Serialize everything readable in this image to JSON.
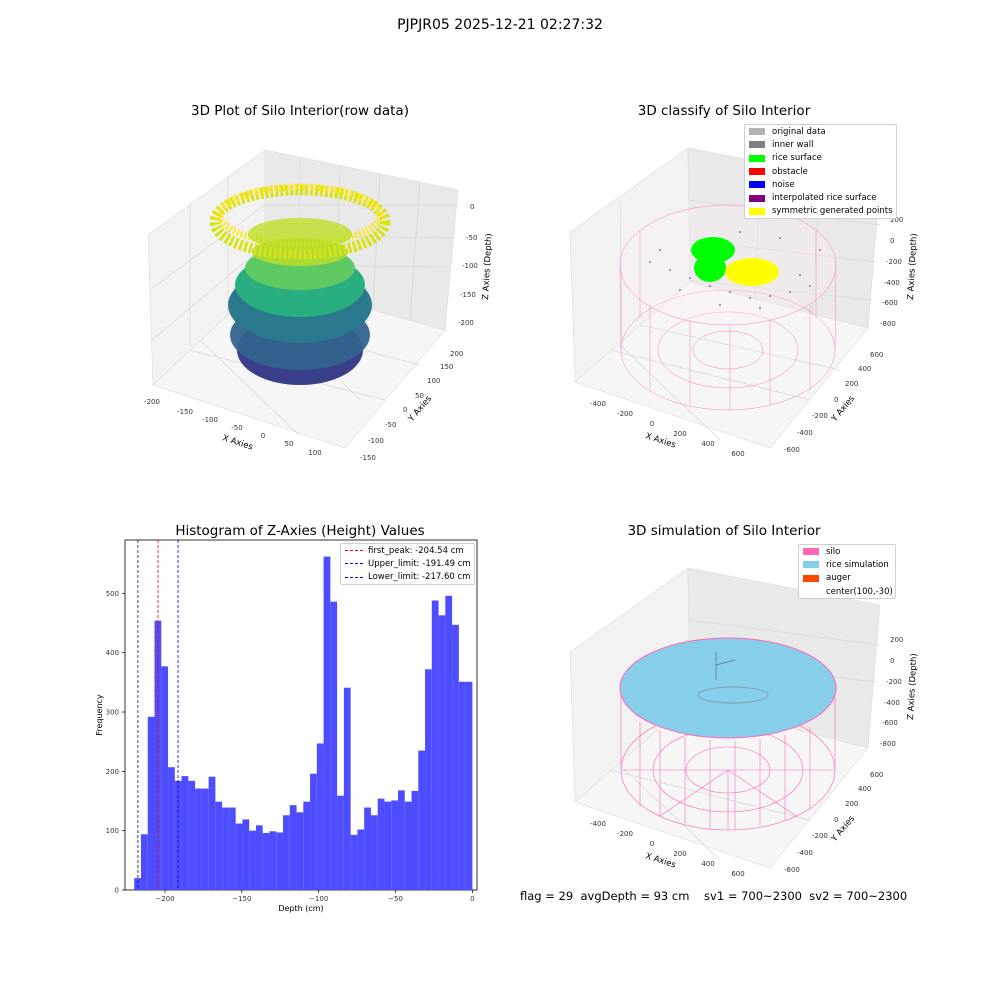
{
  "suptitle": "PJPJR05 2025-12-21 02:27:32",
  "footer": "flag = 29  avgDepth = 93 cm    sv1 = 700~2300  sv2 = 700~2300",
  "chart_data": [
    {
      "type": "scatter",
      "title": "3D Plot of Silo Interior(row data)",
      "xlabel": "X Axies",
      "ylabel": "Y Axies",
      "zlabel": "Z Axies (Depth)",
      "x_ticks": [
        "-200",
        "-150",
        "-100",
        "-50",
        "0",
        "50",
        "100"
      ],
      "y_ticks": [
        "-150",
        "-100",
        "-50",
        "0",
        "50",
        "100",
        "150",
        "200"
      ],
      "z_ticks": [
        "0",
        "-50",
        "-100",
        "-150",
        "-200"
      ],
      "zlim": [
        -220,
        0
      ],
      "colormap": "viridis"
    },
    {
      "type": "scatter",
      "title": "3D classify of Silo Interior",
      "xlabel": "X Axies",
      "ylabel": "Y Axies",
      "zlabel": "Z Axies (Depth)",
      "x_ticks": [
        "-400",
        "-200",
        "0",
        "200",
        "400",
        "600"
      ],
      "y_ticks": [
        "-600",
        "-400",
        "-200",
        "0",
        "200",
        "400",
        "600"
      ],
      "z_ticks": [
        "200",
        "0",
        "-200",
        "-400",
        "-600",
        "-800"
      ],
      "legend": [
        {
          "label": "original data",
          "color": "#b3b3b3"
        },
        {
          "label": "inner wall",
          "color": "#808080"
        },
        {
          "label": "rice surface",
          "color": "#00ff00"
        },
        {
          "label": "obstacle",
          "color": "#ff0000"
        },
        {
          "label": "noise",
          "color": "#0000ff"
        },
        {
          "label": "interpolated rice surface",
          "color": "#800080"
        },
        {
          "label": "symmetric generated points",
          "color": "#ffff00"
        }
      ]
    },
    {
      "type": "bar",
      "title": "Histogram of Z-Axies (Height) Values",
      "xlabel": "Depth (cm)",
      "ylabel": "Frequency",
      "bin_start": -220,
      "bin_width": 4.4,
      "values": [
        20,
        94,
        292,
        454,
        377,
        207,
        184,
        192,
        184,
        171,
        171,
        191,
        149,
        139,
        139,
        112,
        119,
        100,
        109,
        96,
        99,
        97,
        126,
        143,
        131,
        149,
        196,
        247,
        562,
        486,
        159,
        341,
        93,
        102,
        139,
        126,
        154,
        149,
        151,
        168,
        149,
        167,
        235,
        372,
        488,
        463,
        496,
        447,
        351,
        351
      ],
      "xlim": [
        -226,
        3
      ],
      "ylim": [
        0,
        590
      ],
      "x_ticks": [
        -200,
        -150,
        -100,
        -50,
        0
      ],
      "y_ticks": [
        0,
        100,
        200,
        300,
        400,
        500
      ],
      "vlines": [
        {
          "label": "first_peak: -204.54 cm",
          "x": -204.54,
          "color": "#ff0000"
        },
        {
          "label": "Upper_limit: -191.49 cm",
          "x": -191.49,
          "color": "#0000cc"
        },
        {
          "label": "Lower_limit: -217.60 cm",
          "x": -217.6,
          "color": "#0000cc"
        }
      ],
      "bar_color": "#4d4dff"
    },
    {
      "type": "scatter",
      "title": "3D simulation of Silo Interior",
      "xlabel": "X Axies",
      "ylabel": "Y Axies",
      "zlabel": "Z Axies (Depth)",
      "x_ticks": [
        "-400",
        "-200",
        "0",
        "200",
        "400",
        "600"
      ],
      "y_ticks": [
        "-600",
        "-400",
        "-200",
        "0",
        "200",
        "400",
        "600"
      ],
      "z_ticks": [
        "200",
        "0",
        "-200",
        "-400",
        "-600",
        "-800"
      ],
      "legend": [
        {
          "label": "silo",
          "color": "#ff69b4"
        },
        {
          "label": "rice simulation",
          "color": "#87ceeb"
        },
        {
          "label": "auger",
          "color": "#ff4500"
        },
        {
          "label": "center(100,-30)",
          "color": ""
        }
      ]
    }
  ]
}
